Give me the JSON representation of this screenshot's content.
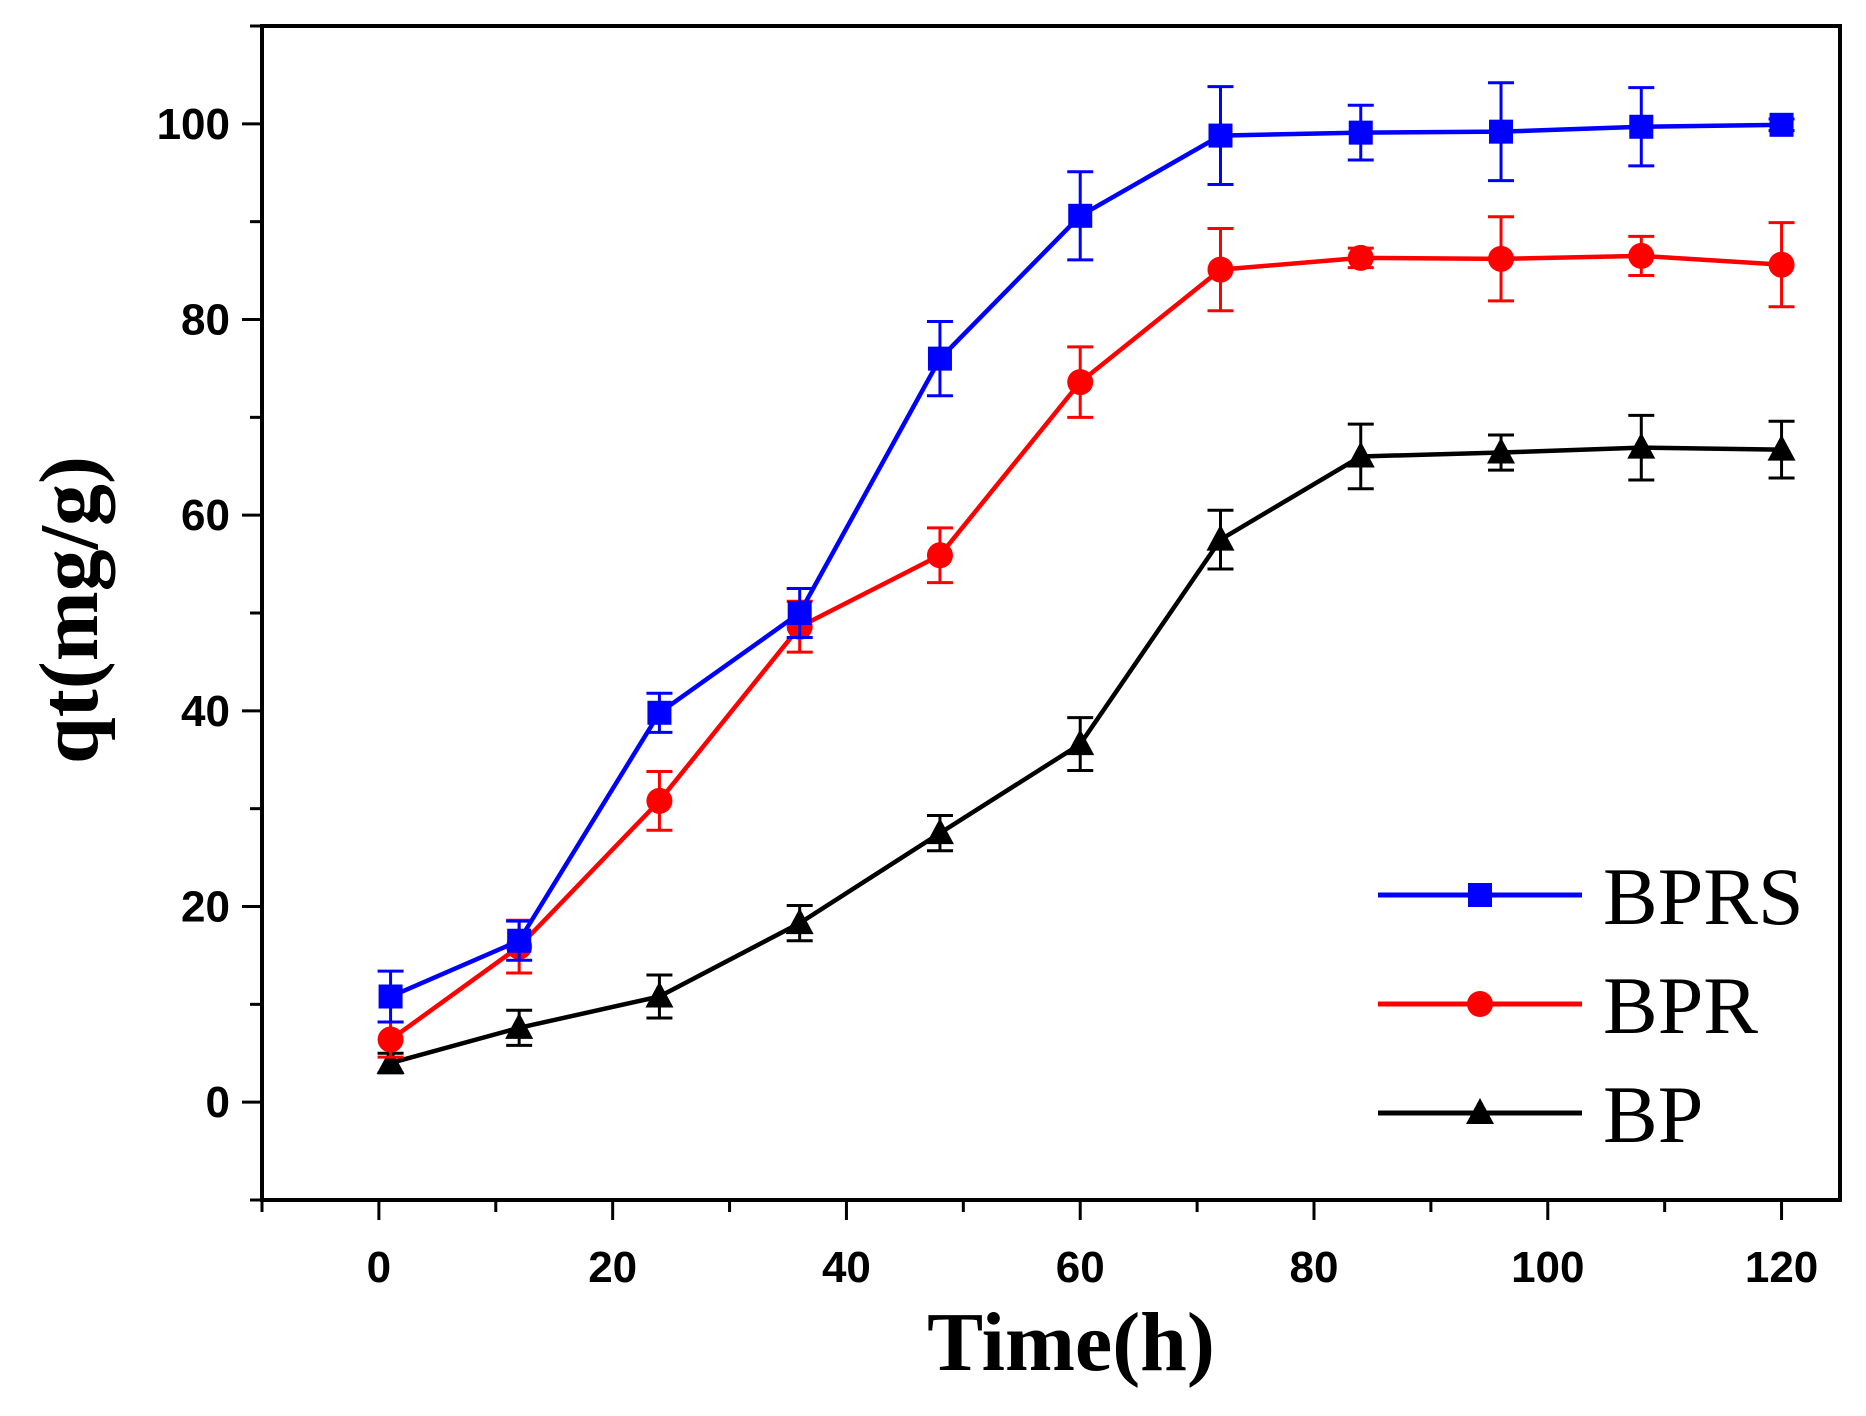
{
  "chart_data": {
    "type": "line",
    "title": "",
    "xlabel": "Time(h)",
    "ylabel": "qt(mg/g)",
    "xlim": [
      -10,
      125
    ],
    "ylim": [
      -10,
      110
    ],
    "xticks": [
      0,
      20,
      40,
      60,
      80,
      100,
      120
    ],
    "xtick_labels": [
      "0",
      "20",
      "40",
      "60",
      "80",
      "100",
      "120"
    ],
    "yticks": [
      0,
      20,
      40,
      60,
      80,
      100
    ],
    "ytick_labels": [
      "0",
      "20",
      "40",
      "60",
      "80",
      "100"
    ],
    "legend_position": "bottom-right",
    "x": [
      1,
      12,
      24,
      36,
      48,
      60,
      72,
      84,
      96,
      108,
      120
    ],
    "series": [
      {
        "name": "BPRS",
        "color": "#0000ff",
        "marker": "square",
        "values": [
          10.8,
          16.5,
          39.8,
          50.0,
          76.0,
          90.6,
          98.8,
          99.1,
          99.2,
          99.7,
          99.9
        ],
        "errors": [
          2.6,
          2.0,
          2.0,
          2.5,
          3.8,
          4.5,
          5.0,
          2.8,
          5.0,
          4.0,
          0.6
        ]
      },
      {
        "name": "BPR",
        "color": "#ff0000",
        "marker": "circle",
        "values": [
          6.4,
          15.9,
          30.8,
          48.6,
          55.9,
          73.6,
          85.1,
          86.3,
          86.2,
          86.5,
          85.6
        ],
        "errors": [
          1.8,
          2.7,
          3.0,
          2.6,
          2.8,
          3.6,
          4.2,
          1.0,
          4.3,
          2.0,
          4.3
        ]
      },
      {
        "name": "BP",
        "color": "#000000",
        "marker": "triangle",
        "values": [
          4.0,
          7.6,
          10.8,
          18.3,
          27.5,
          36.6,
          57.5,
          66.0,
          66.4,
          66.9,
          66.7
        ],
        "errors": [
          1.0,
          1.8,
          2.2,
          1.8,
          1.8,
          2.7,
          3.0,
          3.3,
          1.8,
          3.3,
          2.9
        ]
      }
    ]
  }
}
